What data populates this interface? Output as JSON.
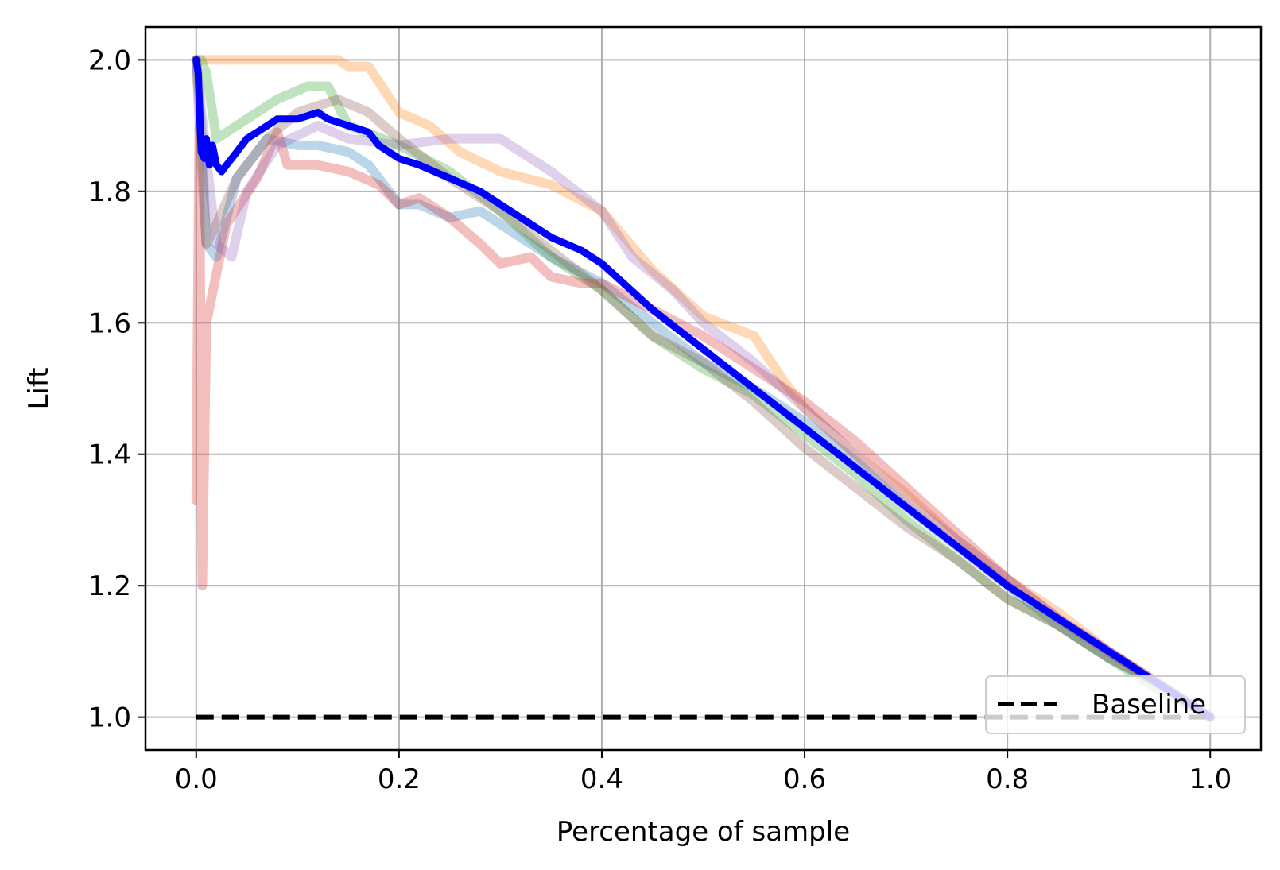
{
  "chart_data": {
    "type": "line",
    "title": "",
    "xlabel": "Percentage of sample",
    "ylabel": "Lift",
    "xlim": [
      -0.05,
      1.05
    ],
    "ylim": [
      0.95,
      2.05
    ],
    "xticks": [
      0.0,
      0.2,
      0.4,
      0.6,
      0.8,
      1.0
    ],
    "xtick_labels": [
      "0.0",
      "0.2",
      "0.4",
      "0.6",
      "0.8",
      "1.0"
    ],
    "yticks": [
      1.0,
      1.2,
      1.4,
      1.6,
      1.8,
      2.0
    ],
    "ytick_labels": [
      "1.0",
      "1.2",
      "1.4",
      "1.6",
      "1.8",
      "2.0"
    ],
    "grid": true,
    "legend": {
      "placement": "lower-right",
      "entries": [
        {
          "label": "Baseline",
          "color": "#000000",
          "style": "dashed"
        }
      ]
    },
    "series": [
      {
        "color": "#1f77b4",
        "opacity": 0.3,
        "x": [
          0.0,
          0.005,
          0.01,
          0.02,
          0.04,
          0.07,
          0.1,
          0.12,
          0.15,
          0.17,
          0.2,
          0.22,
          0.25,
          0.28,
          0.3,
          0.35,
          0.4,
          0.45,
          0.5,
          0.55,
          0.6,
          0.65,
          0.7,
          0.75,
          0.8,
          0.85,
          0.9,
          0.95,
          1.0
        ],
        "y": [
          2.0,
          1.9,
          1.72,
          1.7,
          1.82,
          1.88,
          1.87,
          1.87,
          1.86,
          1.84,
          1.78,
          1.78,
          1.76,
          1.77,
          1.75,
          1.7,
          1.66,
          1.6,
          1.54,
          1.5,
          1.45,
          1.39,
          1.32,
          1.26,
          1.2,
          1.14,
          1.09,
          1.05,
          1.0
        ]
      },
      {
        "color": "#ff7f0e",
        "opacity": 0.3,
        "x": [
          0.0,
          0.005,
          0.01,
          0.05,
          0.1,
          0.14,
          0.15,
          0.17,
          0.2,
          0.23,
          0.26,
          0.3,
          0.35,
          0.4,
          0.45,
          0.5,
          0.55,
          0.58,
          0.6,
          0.65,
          0.7,
          0.75,
          0.8,
          0.85,
          0.9,
          0.95,
          1.0
        ],
        "y": [
          2.0,
          2.0,
          2.0,
          2.0,
          2.0,
          2.0,
          1.99,
          1.99,
          1.92,
          1.9,
          1.86,
          1.83,
          1.81,
          1.77,
          1.68,
          1.61,
          1.58,
          1.51,
          1.47,
          1.4,
          1.34,
          1.27,
          1.21,
          1.16,
          1.1,
          1.05,
          1.0
        ]
      },
      {
        "color": "#2ca02c",
        "opacity": 0.3,
        "x": [
          0.0,
          0.005,
          0.01,
          0.02,
          0.04,
          0.08,
          0.11,
          0.13,
          0.15,
          0.2,
          0.25,
          0.3,
          0.35,
          0.4,
          0.45,
          0.5,
          0.55,
          0.6,
          0.65,
          0.7,
          0.75,
          0.8,
          0.85,
          0.9,
          0.95,
          1.0
        ],
        "y": [
          2.0,
          2.0,
          1.98,
          1.88,
          1.9,
          1.94,
          1.96,
          1.96,
          1.9,
          1.87,
          1.83,
          1.77,
          1.7,
          1.65,
          1.58,
          1.53,
          1.49,
          1.43,
          1.37,
          1.3,
          1.24,
          1.18,
          1.14,
          1.09,
          1.04,
          1.0
        ]
      },
      {
        "color": "#d62728",
        "opacity": 0.3,
        "x": [
          0.0,
          0.003,
          0.006,
          0.01,
          0.03,
          0.06,
          0.08,
          0.09,
          0.12,
          0.15,
          0.18,
          0.2,
          0.22,
          0.25,
          0.28,
          0.3,
          0.33,
          0.35,
          0.38,
          0.4,
          0.45,
          0.5,
          0.55,
          0.6,
          0.65,
          0.7,
          0.75,
          0.8,
          0.85,
          0.9,
          0.95,
          1.0
        ],
        "y": [
          1.33,
          1.9,
          1.2,
          1.6,
          1.75,
          1.82,
          1.89,
          1.84,
          1.84,
          1.83,
          1.81,
          1.78,
          1.79,
          1.76,
          1.72,
          1.69,
          1.7,
          1.67,
          1.66,
          1.66,
          1.62,
          1.58,
          1.53,
          1.48,
          1.42,
          1.35,
          1.28,
          1.21,
          1.15,
          1.1,
          1.05,
          1.0
        ]
      },
      {
        "color": "#9467bd",
        "opacity": 0.3,
        "x": [
          0.0,
          0.01,
          0.02,
          0.035,
          0.05,
          0.08,
          0.12,
          0.15,
          0.2,
          0.25,
          0.3,
          0.35,
          0.4,
          0.43,
          0.47,
          0.5,
          0.55,
          0.6,
          0.65,
          0.7,
          0.75,
          0.8,
          0.85,
          0.9,
          0.95,
          1.0
        ],
        "y": [
          2.0,
          1.85,
          1.72,
          1.7,
          1.8,
          1.87,
          1.9,
          1.88,
          1.87,
          1.88,
          1.88,
          1.83,
          1.77,
          1.7,
          1.65,
          1.6,
          1.54,
          1.47,
          1.4,
          1.33,
          1.27,
          1.21,
          1.15,
          1.1,
          1.05,
          1.0
        ]
      },
      {
        "color": "#8c564b",
        "opacity": 0.3,
        "x": [
          0.0,
          0.005,
          0.01,
          0.02,
          0.04,
          0.07,
          0.1,
          0.14,
          0.17,
          0.2,
          0.25,
          0.3,
          0.35,
          0.4,
          0.45,
          0.5,
          0.55,
          0.6,
          0.65,
          0.7,
          0.75,
          0.8,
          0.85,
          0.9,
          0.95,
          1.0
        ],
        "y": [
          2.0,
          1.85,
          1.72,
          1.75,
          1.82,
          1.88,
          1.92,
          1.94,
          1.92,
          1.88,
          1.82,
          1.77,
          1.71,
          1.65,
          1.58,
          1.54,
          1.48,
          1.41,
          1.35,
          1.29,
          1.24,
          1.18,
          1.14,
          1.09,
          1.05,
          1.0
        ]
      },
      {
        "color": "#0000ff",
        "opacity": 1.0,
        "x": [
          0.0,
          0.002,
          0.005,
          0.008,
          0.01,
          0.013,
          0.016,
          0.02,
          0.025,
          0.03,
          0.04,
          0.05,
          0.06,
          0.08,
          0.1,
          0.12,
          0.13,
          0.15,
          0.17,
          0.18,
          0.2,
          0.22,
          0.25,
          0.28,
          0.3,
          0.33,
          0.35,
          0.38,
          0.4,
          0.45,
          0.5,
          0.55,
          0.6,
          0.65,
          0.7,
          0.75,
          0.8,
          0.85,
          0.9,
          0.95,
          1.0
        ],
        "y": [
          2.0,
          1.98,
          1.86,
          1.85,
          1.88,
          1.84,
          1.87,
          1.84,
          1.83,
          1.84,
          1.86,
          1.88,
          1.89,
          1.91,
          1.91,
          1.92,
          1.91,
          1.9,
          1.89,
          1.87,
          1.85,
          1.84,
          1.82,
          1.8,
          1.78,
          1.75,
          1.73,
          1.71,
          1.69,
          1.62,
          1.56,
          1.5,
          1.44,
          1.38,
          1.32,
          1.26,
          1.2,
          1.15,
          1.1,
          1.05,
          1.0
        ]
      }
    ],
    "baseline": {
      "label": "Baseline",
      "x": [
        0.0,
        1.0
      ],
      "y": [
        1.0,
        1.0
      ],
      "color": "#000000"
    }
  }
}
